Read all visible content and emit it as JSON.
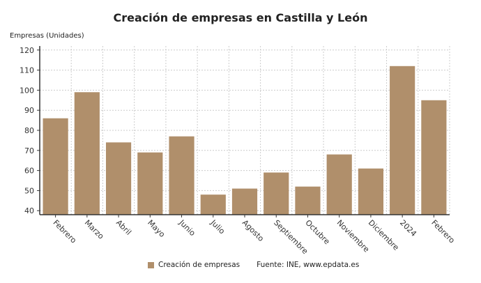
{
  "chart_data": {
    "type": "bar",
    "title": "Creación de empresas en Castilla y León",
    "ylabel": "Empresas (Unidades)",
    "xlabel": "",
    "categories": [
      "Febrero",
      "Marzo",
      "Abril",
      "Mayo",
      "Junio",
      "Julio",
      "Agosto",
      "Septiembre",
      "Octubre",
      "Noviembre",
      "Diciembre",
      "2024",
      "Febrero"
    ],
    "series": [
      {
        "name": "Creación de empresas",
        "values": [
          86,
          99,
          74,
          69,
          77,
          48,
          51,
          59,
          52,
          68,
          61,
          112,
          95
        ],
        "color": "#b08f6b"
      }
    ],
    "ylim": [
      38,
      122
    ],
    "yticks": [
      40,
      50,
      60,
      70,
      80,
      90,
      100,
      110,
      120
    ],
    "grid": true,
    "legend": "bottom"
  },
  "source": "Fuente: INE, www.epdata.es"
}
